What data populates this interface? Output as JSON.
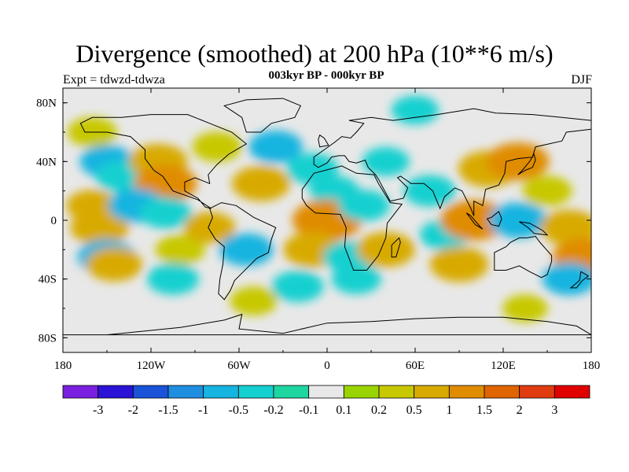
{
  "title": "Divergence (smoothed) at 200 hPa (10**6 m/s)",
  "subtitle": "003kyr BP - 000kyr BP",
  "left_label": "Expt = tdwzd-tdwza",
  "right_label": "DJF",
  "chart_data": {
    "type": "heatmap",
    "title": "Divergence (smoothed) at 200 hPa (10**6 m/s)",
    "subtitle": "003kyr BP - 000kyr BP",
    "experiment": "tdwzd-tdwza",
    "season": "DJF",
    "xlim": [
      -180,
      180
    ],
    "ylim": [
      -90,
      90
    ],
    "x_ticks": [
      {
        "value": -180,
        "label": "180"
      },
      {
        "value": -120,
        "label": "120W"
      },
      {
        "value": -60,
        "label": "60W"
      },
      {
        "value": 0,
        "label": "0"
      },
      {
        "value": 60,
        "label": "60E"
      },
      {
        "value": 120,
        "label": "120E"
      },
      {
        "value": 180,
        "label": "180"
      }
    ],
    "y_ticks": [
      {
        "value": 80,
        "label": "80N"
      },
      {
        "value": 40,
        "label": "40N"
      },
      {
        "value": 0,
        "label": "0"
      },
      {
        "value": -40,
        "label": "40S"
      },
      {
        "value": -80,
        "label": "80S"
      }
    ],
    "colorbar": {
      "colors": [
        "#7a1fe0",
        "#2a12d6",
        "#1a52d8",
        "#1f8ee0",
        "#16b4e0",
        "#14d0d0",
        "#1ed6a0",
        "#e8e8e8",
        "#9ad400",
        "#c8c800",
        "#d8aa00",
        "#e08c00",
        "#e06400",
        "#e03c10",
        "#e00000"
      ],
      "labels": [
        "-3",
        "-2",
        "-1.5",
        "-1",
        "-0.5",
        "-0.2",
        "-0.1",
        "0.1",
        "0.2",
        "0.5",
        "1",
        "1.5",
        "2",
        "3"
      ]
    },
    "anomalies": [
      {
        "lon": -160,
        "lat": 60,
        "value": 0.4
      },
      {
        "lon": -150,
        "lat": 40,
        "value": -0.6
      },
      {
        "lon": -140,
        "lat": 30,
        "value": -0.5
      },
      {
        "lon": -115,
        "lat": 40,
        "value": 0.8
      },
      {
        "lon": -110,
        "lat": 25,
        "value": 1.0
      },
      {
        "lon": -160,
        "lat": 10,
        "value": 0.5
      },
      {
        "lon": -155,
        "lat": -5,
        "value": 0.8
      },
      {
        "lon": -130,
        "lat": 10,
        "value": -0.7
      },
      {
        "lon": -110,
        "lat": 5,
        "value": -0.5
      },
      {
        "lon": -150,
        "lat": -25,
        "value": -0.8
      },
      {
        "lon": -145,
        "lat": -30,
        "value": 0.7
      },
      {
        "lon": -100,
        "lat": -20,
        "value": 0.4
      },
      {
        "lon": -105,
        "lat": -40,
        "value": -0.5
      },
      {
        "lon": -80,
        "lat": -5,
        "value": 0.5
      },
      {
        "lon": -75,
        "lat": 50,
        "value": 0.4
      },
      {
        "lon": -55,
        "lat": -20,
        "value": -0.6
      },
      {
        "lon": -45,
        "lat": 25,
        "value": 0.8
      },
      {
        "lon": -35,
        "lat": 50,
        "value": -0.6
      },
      {
        "lon": -10,
        "lat": 35,
        "value": -0.5
      },
      {
        "lon": 5,
        "lat": 20,
        "value": -0.4
      },
      {
        "lon": 0,
        "lat": 0,
        "value": 1.3
      },
      {
        "lon": -10,
        "lat": -20,
        "value": 0.8
      },
      {
        "lon": 20,
        "lat": -40,
        "value": -0.4
      },
      {
        "lon": 15,
        "lat": -25,
        "value": -0.5
      },
      {
        "lon": 25,
        "lat": 10,
        "value": -0.5
      },
      {
        "lon": 40,
        "lat": -20,
        "value": 0.8
      },
      {
        "lon": 40,
        "lat": 40,
        "value": -0.3
      },
      {
        "lon": 70,
        "lat": 20,
        "value": -0.5
      },
      {
        "lon": 80,
        "lat": -10,
        "value": -0.4
      },
      {
        "lon": 90,
        "lat": -30,
        "value": 0.8
      },
      {
        "lon": 110,
        "lat": 35,
        "value": 0.9
      },
      {
        "lon": 130,
        "lat": 40,
        "value": 1.0
      },
      {
        "lon": 100,
        "lat": 0,
        "value": 1.2
      },
      {
        "lon": 130,
        "lat": 0,
        "value": -0.8
      },
      {
        "lon": 150,
        "lat": 20,
        "value": 0.4
      },
      {
        "lon": 165,
        "lat": -5,
        "value": 0.8
      },
      {
        "lon": 175,
        "lat": -25,
        "value": 1.0
      },
      {
        "lon": 165,
        "lat": -40,
        "value": -0.6
      },
      {
        "lon": -20,
        "lat": -45,
        "value": -0.5
      },
      {
        "lon": 60,
        "lat": 75,
        "value": -0.3
      },
      {
        "lon": -50,
        "lat": -55,
        "value": 0.3
      },
      {
        "lon": 135,
        "lat": -60,
        "value": 0.2
      }
    ]
  }
}
